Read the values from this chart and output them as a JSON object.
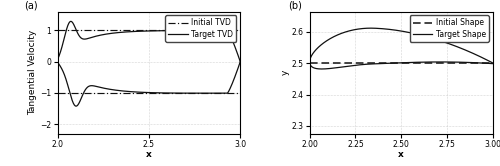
{
  "panel_a": {
    "xlim": [
      2.0,
      3.0
    ],
    "ylim": [
      -2.3,
      1.6
    ],
    "xlabel": "x",
    "ylabel": "Tangential Velocity",
    "xticks": [
      2.0,
      2.5,
      3.0
    ],
    "yticks": [
      -2,
      -1,
      0,
      1
    ],
    "grid_color": "#b0b0b0",
    "label": "(a)"
  },
  "panel_b": {
    "xlim": [
      2.0,
      3.0
    ],
    "ylim": [
      2.275,
      2.665
    ],
    "xlabel": "x",
    "ylabel": "y",
    "xticks": [
      2.0,
      2.25,
      2.5,
      2.75,
      3.0
    ],
    "yticks": [
      2.3,
      2.4,
      2.5,
      2.6
    ],
    "grid_color": "#b0b0b0",
    "label": "(b)"
  },
  "line_color": "#111111",
  "fontsize": 6.5,
  "tick_fontsize": 5.5,
  "legend_fontsize": 5.5
}
